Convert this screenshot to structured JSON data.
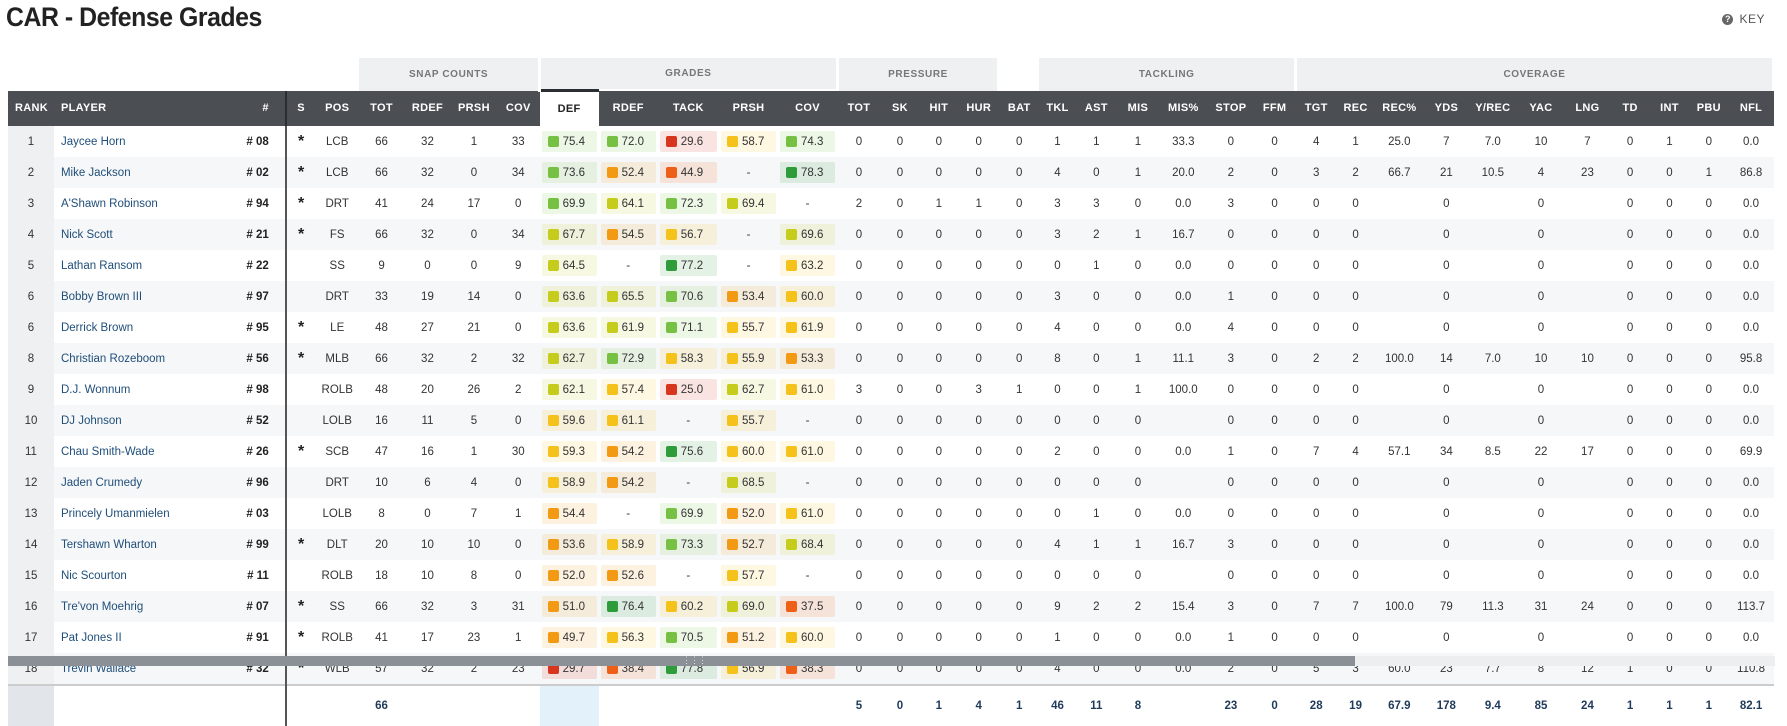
{
  "title": "CAR - Defense Grades",
  "key_label": "KEY",
  "groups": {
    "snap_counts": "SNAP COUNTS",
    "grades": "GRADES",
    "pressure": "PRESSURE",
    "tackling": "TACKLING",
    "coverage": "COVERAGE"
  },
  "columns": [
    "RANK",
    "PLAYER",
    "#",
    "S",
    "POS",
    "TOT",
    "RDEF",
    "PRSH",
    "COV",
    "DEF",
    "RDEF",
    "TACK",
    "PRSH",
    "COV",
    "TOT",
    "SK",
    "HIT",
    "HUR",
    "BAT",
    "TKL",
    "AST",
    "MIS",
    "MIS%",
    "STOP",
    "FFM",
    "TGT",
    "REC",
    "REC%",
    "YDS",
    "Y/REC",
    "YAC",
    "LNG",
    "TD",
    "INT",
    "PBU",
    "NFL"
  ],
  "grade_colors": {
    "dark_green": "#2e9c3b",
    "green": "#76c043",
    "yellow_green": "#c6cc1c",
    "yellow": "#f4c21b",
    "orange": "#f39a14",
    "orange_red": "#ee6018",
    "red": "#d8351f"
  },
  "rows": [
    {
      "rank": "1",
      "player": "Jaycee Horn",
      "num": "# 08",
      "s": "*",
      "pos": "LCB",
      "snap": [
        "66",
        "32",
        "1",
        "33"
      ],
      "grades": [
        "75.4",
        "72.0",
        "29.6",
        "58.7",
        "74.3"
      ],
      "gcol": [
        "green",
        "green",
        "red",
        "yellow",
        "green"
      ],
      "pressure": [
        "0",
        "0",
        "0",
        "0",
        "0"
      ],
      "tackling": [
        "1",
        "1",
        "1",
        "33.3",
        "0",
        "0"
      ],
      "coverage": [
        "4",
        "1",
        "25.0",
        "7",
        "7.0",
        "10",
        "7",
        "0",
        "1",
        "0",
        "0.0"
      ]
    },
    {
      "rank": "2",
      "player": "Mike Jackson",
      "num": "# 02",
      "s": "*",
      "pos": "LCB",
      "snap": [
        "66",
        "32",
        "0",
        "34"
      ],
      "grades": [
        "73.6",
        "52.4",
        "44.9",
        "-",
        "78.3"
      ],
      "gcol": [
        "green",
        "orange",
        "orange_red",
        "",
        "dark_green"
      ],
      "pressure": [
        "0",
        "0",
        "0",
        "0",
        "0"
      ],
      "tackling": [
        "4",
        "0",
        "1",
        "20.0",
        "2",
        "0"
      ],
      "coverage": [
        "3",
        "2",
        "66.7",
        "21",
        "10.5",
        "4",
        "23",
        "0",
        "0",
        "1",
        "86.8"
      ]
    },
    {
      "rank": "3",
      "player": "A'Shawn Robinson",
      "num": "# 94",
      "s": "*",
      "pos": "DRT",
      "snap": [
        "41",
        "24",
        "17",
        "0"
      ],
      "grades": [
        "69.9",
        "64.1",
        "72.3",
        "69.4",
        "-"
      ],
      "gcol": [
        "green",
        "yellow_green",
        "green",
        "yellow_green",
        ""
      ],
      "pressure": [
        "2",
        "0",
        "1",
        "1",
        "0"
      ],
      "tackling": [
        "3",
        "3",
        "0",
        "0.0",
        "3",
        "0"
      ],
      "coverage": [
        "0",
        "0",
        "",
        "0",
        "",
        "0",
        "",
        "0",
        "0",
        "0",
        "0.0"
      ]
    },
    {
      "rank": "4",
      "player": "Nick Scott",
      "num": "# 21",
      "s": "*",
      "pos": "FS",
      "snap": [
        "66",
        "32",
        "0",
        "34"
      ],
      "grades": [
        "67.7",
        "54.5",
        "56.7",
        "-",
        "69.6"
      ],
      "gcol": [
        "yellow_green",
        "orange",
        "yellow",
        "",
        "yellow_green"
      ],
      "pressure": [
        "0",
        "0",
        "0",
        "0",
        "0"
      ],
      "tackling": [
        "3",
        "2",
        "1",
        "16.7",
        "0",
        "0"
      ],
      "coverage": [
        "0",
        "0",
        "",
        "0",
        "",
        "0",
        "",
        "0",
        "0",
        "0",
        "0.0"
      ]
    },
    {
      "rank": "5",
      "player": "Lathan Ransom",
      "num": "# 22",
      "s": "",
      "pos": "SS",
      "snap": [
        "9",
        "0",
        "0",
        "9"
      ],
      "grades": [
        "64.5",
        "-",
        "77.2",
        "-",
        "63.2"
      ],
      "gcol": [
        "yellow_green",
        "",
        "dark_green",
        "",
        "yellow"
      ],
      "pressure": [
        "0",
        "0",
        "0",
        "0",
        "0"
      ],
      "tackling": [
        "0",
        "1",
        "0",
        "0.0",
        "0",
        "0"
      ],
      "coverage": [
        "0",
        "0",
        "",
        "0",
        "",
        "0",
        "",
        "0",
        "0",
        "0",
        "0.0"
      ]
    },
    {
      "rank": "6",
      "player": "Bobby Brown III",
      "num": "# 97",
      "s": "",
      "pos": "DRT",
      "snap": [
        "33",
        "19",
        "14",
        "0"
      ],
      "grades": [
        "63.6",
        "65.5",
        "70.6",
        "53.4",
        "60.0"
      ],
      "gcol": [
        "yellow_green",
        "yellow_green",
        "green",
        "orange",
        "yellow"
      ],
      "pressure": [
        "0",
        "0",
        "0",
        "0",
        "0"
      ],
      "tackling": [
        "3",
        "0",
        "0",
        "0.0",
        "1",
        "0"
      ],
      "coverage": [
        "0",
        "0",
        "",
        "0",
        "",
        "0",
        "",
        "0",
        "0",
        "0",
        "0.0"
      ]
    },
    {
      "rank": "6",
      "player": "Derrick Brown",
      "num": "# 95",
      "s": "*",
      "pos": "LE",
      "snap": [
        "48",
        "27",
        "21",
        "0"
      ],
      "grades": [
        "63.6",
        "61.9",
        "71.1",
        "55.7",
        "61.9"
      ],
      "gcol": [
        "yellow_green",
        "yellow_green",
        "green",
        "yellow",
        "yellow"
      ],
      "pressure": [
        "0",
        "0",
        "0",
        "0",
        "0"
      ],
      "tackling": [
        "4",
        "0",
        "0",
        "0.0",
        "4",
        "0"
      ],
      "coverage": [
        "0",
        "0",
        "",
        "0",
        "",
        "0",
        "",
        "0",
        "0",
        "0",
        "0.0"
      ]
    },
    {
      "rank": "8",
      "player": "Christian Rozeboom",
      "num": "# 56",
      "s": "*",
      "pos": "MLB",
      "snap": [
        "66",
        "32",
        "2",
        "32"
      ],
      "grades": [
        "62.7",
        "72.9",
        "58.3",
        "55.9",
        "53.3"
      ],
      "gcol": [
        "yellow_green",
        "green",
        "yellow",
        "yellow",
        "orange"
      ],
      "pressure": [
        "0",
        "0",
        "0",
        "0",
        "0"
      ],
      "tackling": [
        "8",
        "0",
        "1",
        "11.1",
        "3",
        "0"
      ],
      "coverage": [
        "2",
        "2",
        "100.0",
        "14",
        "7.0",
        "10",
        "10",
        "0",
        "0",
        "0",
        "95.8"
      ]
    },
    {
      "rank": "9",
      "player": "D.J. Wonnum",
      "num": "# 98",
      "s": "",
      "pos": "ROLB",
      "snap": [
        "48",
        "20",
        "26",
        "2"
      ],
      "grades": [
        "62.1",
        "57.4",
        "25.0",
        "62.7",
        "61.0"
      ],
      "gcol": [
        "yellow_green",
        "yellow",
        "red",
        "yellow_green",
        "yellow"
      ],
      "pressure": [
        "3",
        "0",
        "0",
        "3",
        "1"
      ],
      "tackling": [
        "0",
        "0",
        "1",
        "100.0",
        "0",
        "0"
      ],
      "coverage": [
        "0",
        "0",
        "",
        "0",
        "",
        "0",
        "",
        "0",
        "0",
        "0",
        "0.0"
      ]
    },
    {
      "rank": "10",
      "player": "DJ Johnson",
      "num": "# 52",
      "s": "",
      "pos": "LOLB",
      "snap": [
        "16",
        "11",
        "5",
        "0"
      ],
      "grades": [
        "59.6",
        "61.1",
        "-",
        "55.7",
        "-"
      ],
      "gcol": [
        "yellow",
        "yellow",
        "",
        "yellow",
        ""
      ],
      "pressure": [
        "0",
        "0",
        "0",
        "0",
        "0"
      ],
      "tackling": [
        "0",
        "0",
        "0",
        "",
        "0",
        "0"
      ],
      "coverage": [
        "0",
        "0",
        "",
        "0",
        "",
        "0",
        "",
        "0",
        "0",
        "0",
        "0.0"
      ]
    },
    {
      "rank": "11",
      "player": "Chau Smith-Wade",
      "num": "# 26",
      "s": "*",
      "pos": "SCB",
      "snap": [
        "47",
        "16",
        "1",
        "30"
      ],
      "grades": [
        "59.3",
        "54.2",
        "75.6",
        "60.0",
        "61.0"
      ],
      "gcol": [
        "yellow",
        "orange",
        "dark_green",
        "yellow",
        "yellow"
      ],
      "pressure": [
        "0",
        "0",
        "0",
        "0",
        "0"
      ],
      "tackling": [
        "2",
        "0",
        "0",
        "0.0",
        "1",
        "0"
      ],
      "coverage": [
        "7",
        "4",
        "57.1",
        "34",
        "8.5",
        "22",
        "17",
        "0",
        "0",
        "0",
        "69.9"
      ]
    },
    {
      "rank": "12",
      "player": "Jaden Crumedy",
      "num": "# 96",
      "s": "",
      "pos": "DRT",
      "snap": [
        "10",
        "6",
        "4",
        "0"
      ],
      "grades": [
        "58.9",
        "54.2",
        "-",
        "68.5",
        "-"
      ],
      "gcol": [
        "yellow",
        "orange",
        "",
        "yellow_green",
        ""
      ],
      "pressure": [
        "0",
        "0",
        "0",
        "0",
        "0"
      ],
      "tackling": [
        "0",
        "0",
        "0",
        "",
        "0",
        "0"
      ],
      "coverage": [
        "0",
        "0",
        "",
        "0",
        "",
        "0",
        "",
        "0",
        "0",
        "0",
        "0.0"
      ]
    },
    {
      "rank": "13",
      "player": "Princely Umanmielen",
      "num": "# 03",
      "s": "",
      "pos": "LOLB",
      "snap": [
        "8",
        "0",
        "7",
        "1"
      ],
      "grades": [
        "54.4",
        "-",
        "69.9",
        "52.0",
        "61.0"
      ],
      "gcol": [
        "orange",
        "",
        "green",
        "orange",
        "yellow"
      ],
      "pressure": [
        "0",
        "0",
        "0",
        "0",
        "0"
      ],
      "tackling": [
        "0",
        "1",
        "0",
        "0.0",
        "0",
        "0"
      ],
      "coverage": [
        "0",
        "0",
        "",
        "0",
        "",
        "0",
        "",
        "0",
        "0",
        "0",
        "0.0"
      ]
    },
    {
      "rank": "14",
      "player": "Tershawn Wharton",
      "num": "# 99",
      "s": "*",
      "pos": "DLT",
      "snap": [
        "20",
        "10",
        "10",
        "0"
      ],
      "grades": [
        "53.6",
        "58.9",
        "73.3",
        "52.7",
        "68.4"
      ],
      "gcol": [
        "orange",
        "yellow",
        "green",
        "orange",
        "yellow_green"
      ],
      "pressure": [
        "0",
        "0",
        "0",
        "0",
        "0"
      ],
      "tackling": [
        "4",
        "1",
        "1",
        "16.7",
        "3",
        "0"
      ],
      "coverage": [
        "0",
        "0",
        "",
        "0",
        "",
        "0",
        "",
        "0",
        "0",
        "0",
        "0.0"
      ]
    },
    {
      "rank": "15",
      "player": "Nic Scourton",
      "num": "# 11",
      "s": "",
      "pos": "ROLB",
      "snap": [
        "18",
        "10",
        "8",
        "0"
      ],
      "grades": [
        "52.0",
        "52.6",
        "-",
        "57.7",
        "-"
      ],
      "gcol": [
        "orange",
        "orange",
        "",
        "yellow",
        ""
      ],
      "pressure": [
        "0",
        "0",
        "0",
        "0",
        "0"
      ],
      "tackling": [
        "0",
        "0",
        "0",
        "",
        "0",
        "0"
      ],
      "coverage": [
        "0",
        "0",
        "",
        "0",
        "",
        "0",
        "",
        "0",
        "0",
        "0",
        "0.0"
      ]
    },
    {
      "rank": "16",
      "player": "Tre'von Moehrig",
      "num": "# 07",
      "s": "*",
      "pos": "SS",
      "snap": [
        "66",
        "32",
        "3",
        "31"
      ],
      "grades": [
        "51.0",
        "76.4",
        "60.2",
        "69.0",
        "37.5"
      ],
      "gcol": [
        "orange",
        "dark_green",
        "yellow",
        "yellow_green",
        "orange_red"
      ],
      "pressure": [
        "0",
        "0",
        "0",
        "0",
        "0"
      ],
      "tackling": [
        "9",
        "2",
        "2",
        "15.4",
        "3",
        "0"
      ],
      "coverage": [
        "7",
        "7",
        "100.0",
        "79",
        "11.3",
        "31",
        "24",
        "0",
        "0",
        "0",
        "113.7"
      ]
    },
    {
      "rank": "17",
      "player": "Pat Jones II",
      "num": "# 91",
      "s": "*",
      "pos": "ROLB",
      "snap": [
        "41",
        "17",
        "23",
        "1"
      ],
      "grades": [
        "49.7",
        "56.3",
        "70.5",
        "51.2",
        "60.0"
      ],
      "gcol": [
        "orange",
        "yellow",
        "green",
        "orange",
        "yellow"
      ],
      "pressure": [
        "0",
        "0",
        "0",
        "0",
        "0"
      ],
      "tackling": [
        "1",
        "0",
        "0",
        "0.0",
        "1",
        "0"
      ],
      "coverage": [
        "0",
        "0",
        "",
        "0",
        "",
        "0",
        "",
        "0",
        "0",
        "0",
        "0.0"
      ]
    },
    {
      "rank": "18",
      "player": "Trevin Wallace",
      "num": "# 32",
      "s": "*",
      "pos": "WLB",
      "snap": [
        "57",
        "32",
        "2",
        "23"
      ],
      "grades": [
        "29.7",
        "38.4",
        "77.8",
        "56.9",
        "38.3"
      ],
      "gcol": [
        "red",
        "orange_red",
        "dark_green",
        "yellow",
        "orange_red"
      ],
      "pressure": [
        "0",
        "0",
        "0",
        "0",
        "0"
      ],
      "tackling": [
        "4",
        "0",
        "0",
        "0.0",
        "2",
        "0"
      ],
      "coverage": [
        "5",
        "3",
        "60.0",
        "23",
        "7.7",
        "8",
        "12",
        "1",
        "0",
        "0",
        "110.8"
      ]
    }
  ],
  "totals": {
    "snap_tot": "66",
    "pressure": [
      "5",
      "0",
      "1",
      "4",
      "1"
    ],
    "tackling": [
      "46",
      "11",
      "8",
      "",
      "23",
      "0"
    ],
    "coverage": [
      "28",
      "19",
      "67.9",
      "178",
      "9.4",
      "85",
      "24",
      "1",
      "1",
      "1",
      "82.1"
    ]
  }
}
